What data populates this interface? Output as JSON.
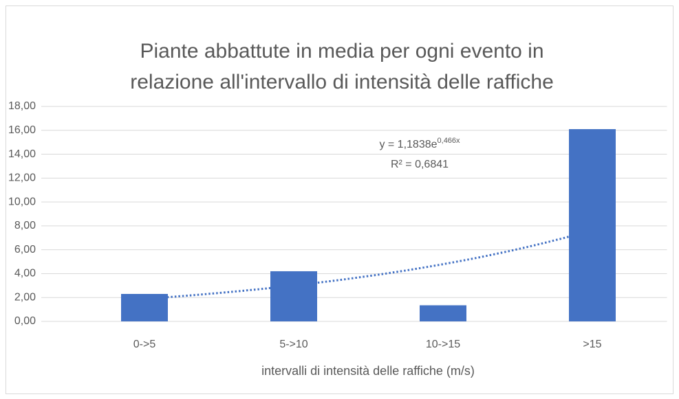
{
  "chart_data": {
    "type": "bar",
    "title": [
      "Piante abbattute in media per ogni evento in",
      "relazione all'intervallo di intensità delle raffiche"
    ],
    "x_label": "intervalli di intensità delle raffiche (m/s)",
    "categories": [
      "0->5",
      "5->10",
      "10->15",
      ">15"
    ],
    "values": [
      2.3,
      4.2,
      1.35,
      16.1
    ],
    "color": "#4472c4",
    "ylim": [
      0,
      18
    ],
    "yticks": [
      {
        "value": 0,
        "label": "0,00"
      },
      {
        "value": 2,
        "label": "2,00"
      },
      {
        "value": 4,
        "label": "4,00"
      },
      {
        "value": 6,
        "label": "6,00"
      },
      {
        "value": 8,
        "label": "8,00"
      },
      {
        "value": 10,
        "label": "10,00"
      },
      {
        "value": 12,
        "label": "12,00"
      },
      {
        "value": 14,
        "label": "14,00"
      },
      {
        "value": 16,
        "label": "16,00"
      },
      {
        "value": 18,
        "label": "18,00"
      }
    ],
    "grid": true,
    "trendline": {
      "type": "exponential",
      "a": 1.1838,
      "b": 0.466,
      "equation": "y = 1,1838e",
      "exponent": "0,466x",
      "r2": "R² = 0,6841"
    }
  }
}
